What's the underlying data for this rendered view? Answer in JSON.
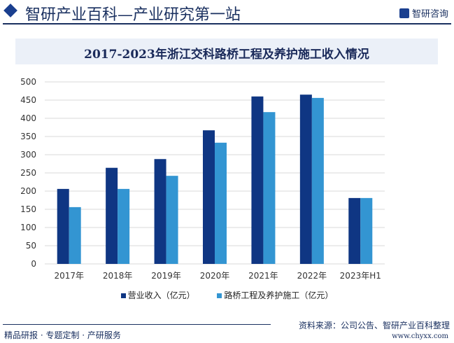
{
  "header": {
    "site_title": "智研产业百科—产业研究第一站",
    "brand": "智研咨询"
  },
  "footer": {
    "slogan": "精品研报 · 专题定制 · 产研服务",
    "source": "资料来源：公司公告、智研产业百科整理",
    "url": "www.chyxx.com"
  },
  "chart_data": {
    "type": "bar",
    "title": "2017-2023年浙江交科路桥工程及养护施工收入情况",
    "categories": [
      "2017年",
      "2018年",
      "2019年",
      "2020年",
      "2021年",
      "2022年",
      "2023年H1"
    ],
    "series": [
      {
        "name": "营业收入（亿元）",
        "color": "#0f3683",
        "values": [
          206,
          264,
          288,
          367,
          460,
          465,
          181
        ]
      },
      {
        "name": "路桥工程及养护施工（亿元）",
        "color": "#3395d2",
        "values": [
          156,
          206,
          242,
          333,
          417,
          456,
          181
        ]
      }
    ],
    "ylim": [
      0,
      500
    ],
    "yticks": [
      0,
      50,
      100,
      150,
      200,
      250,
      300,
      350,
      400,
      450,
      500
    ],
    "grid": true,
    "legend": "bottom"
  }
}
